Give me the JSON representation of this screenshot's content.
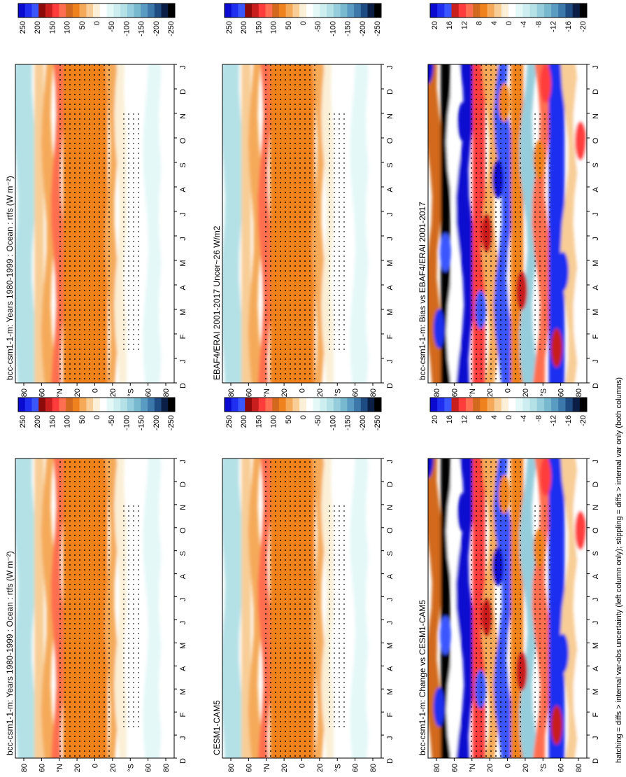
{
  "footnote": "hatching = diffs > internal var-obs uncertainty (left column only); stippling = diffs > internal var only (both columns)",
  "colorbars": {
    "flux_labels": [
      "250",
      "200",
      "150",
      "100",
      "50",
      "0",
      "-50",
      "-100",
      "-150",
      "-200",
      "-250"
    ],
    "flux_colors": [
      "#0a0ad0",
      "#1f2ef0",
      "#3a56ff",
      "#8c0a0a",
      "#c81e1e",
      "#ff3c3c",
      "#ff6e50",
      "#d2691e",
      "#f0821e",
      "#f5aa5a",
      "#f8cd96",
      "#fbf0d7",
      "#ffffff",
      "#e4f8f8",
      "#cdeef0",
      "#b4e1e6",
      "#96cddc",
      "#78b9d0",
      "#5a9bc3",
      "#3c78aa",
      "#1e4b82",
      "#0a1e46",
      "#000000"
    ],
    "diff_labels": [
      "20",
      "16",
      "12",
      "8",
      "4",
      "0",
      "-4",
      "-8",
      "-12",
      "-16",
      "-20"
    ],
    "diff_colors": [
      "#0a0ad0",
      "#1f2ef0",
      "#3a56ff",
      "#c81e1e",
      "#ff3c3c",
      "#ff6e50",
      "#d2691e",
      "#f0821e",
      "#f5aa5a",
      "#f8cd96",
      "#fbf0d7",
      "#ffffff",
      "#e4f8f8",
      "#cdeef0",
      "#b4e1e6",
      "#96cddc",
      "#78b9d0",
      "#5a9bc3",
      "#3c78aa",
      "#1e4b82",
      "#0a1e46",
      "#000000"
    ]
  },
  "chart_data": [
    {
      "type": "heatmap",
      "title": "bcc-csm1-1-m: Years 1980-1999 : Ocean : rtfs (W m⁻²)",
      "months": [
        "D",
        "J",
        "F",
        "M",
        "A",
        "M",
        "J",
        "J",
        "A",
        "S",
        "O",
        "N",
        "D",
        "J"
      ],
      "lat_labels": [
        "80",
        "60",
        "°N",
        "20",
        "0",
        "20",
        "°S",
        "60",
        "80"
      ],
      "colorbar": "flux"
    },
    {
      "type": "heatmap",
      "title": "bcc-csm1-1-m: Years 1980-1999 : Ocean : rtfs (W m⁻²)",
      "months": [
        "D",
        "J",
        "F",
        "M",
        "A",
        "M",
        "J",
        "J",
        "A",
        "S",
        "O",
        "N",
        "D",
        "J"
      ],
      "lat_labels": [
        "80",
        "60",
        "°N",
        "20",
        "0",
        "20",
        "°S",
        "60",
        "80"
      ],
      "colorbar": "flux"
    },
    {
      "type": "heatmap",
      "title": "EBAF4/ERAI 2001-2017 Uncer~26 W/m2",
      "months": [
        "D",
        "J",
        "F",
        "M",
        "A",
        "M",
        "J",
        "J",
        "A",
        "S",
        "O",
        "N",
        "D",
        "J"
      ],
      "lat_labels": [
        "80",
        "60",
        "°N",
        "20",
        "0",
        "20",
        "°S",
        "60",
        "80"
      ],
      "colorbar": "flux"
    },
    {
      "type": "heatmap",
      "title": "CESM1-CAM5",
      "months": [
        "D",
        "J",
        "F",
        "M",
        "A",
        "M",
        "J",
        "J",
        "A",
        "S",
        "O",
        "N",
        "D",
        "J"
      ],
      "lat_labels": [
        "80",
        "60",
        "°N",
        "20",
        "0",
        "20",
        "°S",
        "60",
        "80"
      ],
      "colorbar": "flux"
    },
    {
      "type": "heatmap",
      "title": "bcc-csm1-1-m: Bias vs EBAF4/ERAI 2001-2017",
      "months": [
        "D",
        "J",
        "F",
        "M",
        "A",
        "M",
        "J",
        "J",
        "A",
        "S",
        "O",
        "N",
        "D",
        "J"
      ],
      "lat_labels": [
        "80",
        "60",
        "°N",
        "20",
        "0",
        "20",
        "°S",
        "60",
        "80"
      ],
      "colorbar": "diff"
    },
    {
      "type": "heatmap",
      "title": "bcc-csm1-1-m: Change vs CESM1-CAM5",
      "months": [
        "D",
        "J",
        "F",
        "M",
        "A",
        "M",
        "J",
        "J",
        "A",
        "S",
        "O",
        "N",
        "D",
        "J"
      ],
      "lat_labels": [
        "80",
        "60",
        "°N",
        "20",
        "0",
        "20",
        "°S",
        "60",
        "80"
      ],
      "colorbar": "diff"
    }
  ]
}
